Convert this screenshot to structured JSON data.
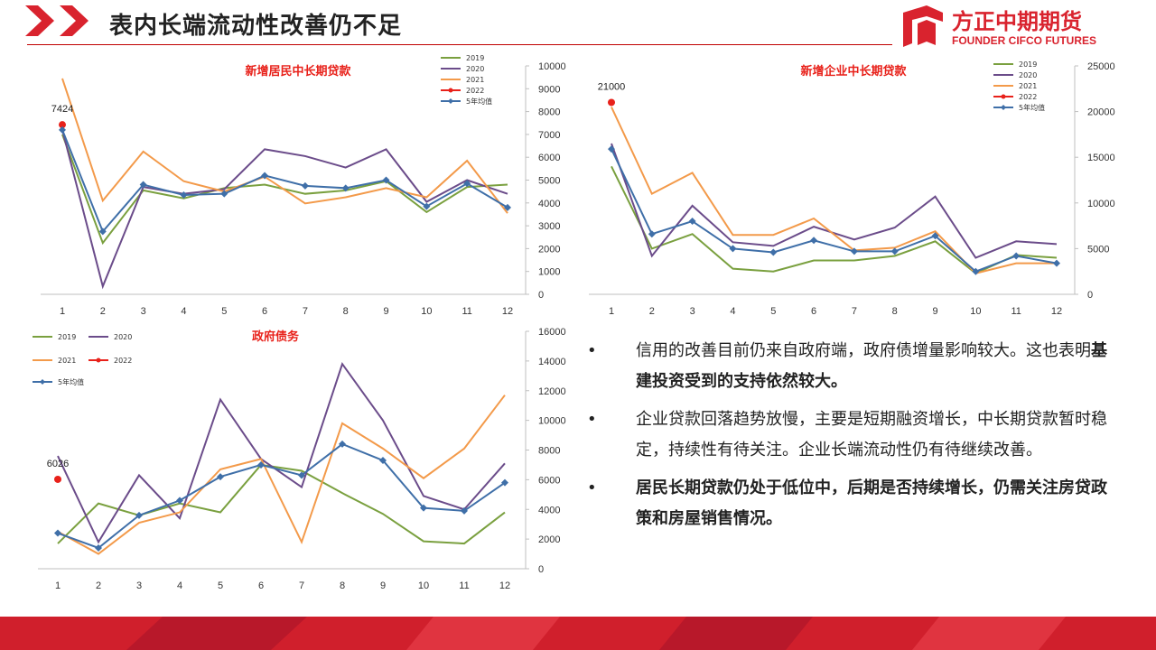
{
  "header": {
    "title": "表内长端流动性改善仍不足",
    "logo_cn": "方正中期期货",
    "logo_en": "FOUNDER CIFCO FUTURES"
  },
  "colors": {
    "brand_red": "#d9232e",
    "s2019": "#7aa03f",
    "s2020": "#6b4c8a",
    "s2021": "#f39a4a",
    "s2022": "#e8211a",
    "avg5": "#3f6fa8"
  },
  "chart_data": [
    {
      "id": "household",
      "type": "line",
      "title": "新增居民中长期贷款",
      "categories": [
        "1",
        "2",
        "3",
        "4",
        "5",
        "6",
        "7",
        "8",
        "9",
        "10",
        "11",
        "12"
      ],
      "ylim": [
        0,
        10000
      ],
      "yticks": [
        "0",
        "1000",
        "2000",
        "3000",
        "4000",
        "5000",
        "6000",
        "7000",
        "8000",
        "9000",
        "10000"
      ],
      "legend_position": "top-right",
      "series": [
        {
          "name": "2019",
          "values": [
            7000,
            2250,
            4550,
            4200,
            4650,
            4800,
            4400,
            4550,
            4950,
            3600,
            4700,
            4800
          ]
        },
        {
          "name": "2020",
          "values": [
            7200,
            350,
            4700,
            4400,
            4600,
            6350,
            6050,
            5550,
            6350,
            4050,
            5000,
            4400
          ]
        },
        {
          "name": "2021",
          "values": [
            9450,
            4100,
            6250,
            4950,
            4500,
            5150,
            3980,
            4250,
            4650,
            4250,
            5850,
            3550
          ]
        },
        {
          "name": "2022",
          "values": [
            7424,
            null,
            null,
            null,
            null,
            null,
            null,
            null,
            null,
            null,
            null,
            null
          ]
        },
        {
          "name": "5年均值",
          "values": [
            7200,
            2750,
            4800,
            4350,
            4400,
            5200,
            4750,
            4650,
            5000,
            3850,
            4850,
            3800
          ]
        }
      ],
      "annotation": "7424"
    },
    {
      "id": "corporate",
      "type": "line",
      "title": "新增企业中长期贷款",
      "categories": [
        "1",
        "2",
        "3",
        "4",
        "5",
        "6",
        "7",
        "8",
        "9",
        "10",
        "11",
        "12"
      ],
      "ylim": [
        0,
        25000
      ],
      "yticks": [
        "0",
        "5000",
        "10000",
        "15000",
        "20000",
        "25000"
      ],
      "legend_position": "top-left",
      "series": [
        {
          "name": "2019",
          "values": [
            14000,
            5000,
            6600,
            2800,
            2500,
            3700,
            3700,
            4200,
            5800,
            2300,
            4300,
            4000
          ]
        },
        {
          "name": "2020",
          "values": [
            16500,
            4200,
            9700,
            5700,
            5300,
            7400,
            6000,
            7300,
            10700,
            4000,
            5800,
            5500
          ]
        },
        {
          "name": "2021",
          "values": [
            20500,
            11000,
            13300,
            6500,
            6500,
            8300,
            4800,
            5100,
            6900,
            2300,
            3400,
            3400
          ]
        },
        {
          "name": "2022",
          "values": [
            21000,
            null,
            null,
            null,
            null,
            null,
            null,
            null,
            null,
            null,
            null,
            null
          ]
        },
        {
          "name": "5年均值",
          "values": [
            15900,
            6600,
            8000,
            5000,
            4600,
            5900,
            4700,
            4700,
            6400,
            2500,
            4200,
            3400
          ]
        }
      ],
      "annotation": "21000"
    },
    {
      "id": "government",
      "type": "line",
      "title": "政府债务",
      "categories": [
        "1",
        "2",
        "3",
        "4",
        "5",
        "6",
        "7",
        "8",
        "9",
        "10",
        "11",
        "12"
      ],
      "ylim": [
        0,
        16000
      ],
      "yticks": [
        "0",
        "2000",
        "4000",
        "6000",
        "8000",
        "10000",
        "12000",
        "14000",
        "16000"
      ],
      "legend_position": "top-left",
      "series": [
        {
          "name": "2019",
          "values": [
            1700,
            4400,
            3600,
            4400,
            3800,
            7000,
            6600,
            5100,
            3700,
            1850,
            1700,
            3800
          ]
        },
        {
          "name": "2020",
          "values": [
            7600,
            1800,
            6300,
            3400,
            11400,
            7400,
            5500,
            13800,
            10000,
            4900,
            4000,
            7100
          ]
        },
        {
          "name": "2021",
          "values": [
            2500,
            1000,
            3100,
            3800,
            6700,
            7400,
            1800,
            9800,
            8100,
            6100,
            8100,
            11700
          ]
        },
        {
          "name": "2022",
          "values": [
            6026,
            null,
            null,
            null,
            null,
            null,
            null,
            null,
            null,
            null,
            null,
            null
          ]
        },
        {
          "name": "5年均值",
          "values": [
            2400,
            1400,
            3600,
            4600,
            6200,
            7000,
            6300,
            8400,
            7300,
            4100,
            3900,
            5800
          ]
        }
      ],
      "annotation": "6026"
    }
  ],
  "bullets": [
    {
      "parts": [
        {
          "text": "信用的改善目前仍来自政府端，政府债增量影响较大。这也表明",
          "bold": false
        },
        {
          "text": "基建投资受到的支持依然较大。",
          "bold": true
        }
      ]
    },
    {
      "parts": [
        {
          "text": "企业贷款回落趋势放慢，主要是短期融资增长，中长期贷款暂时稳定，持续性有待关注。企业长端流动性仍有待继续改善。",
          "bold": false
        }
      ]
    },
    {
      "parts": [
        {
          "text": "居民长期贷款仍处于低位中，后期是否持续增长，仍需关注房贷政策和房屋销售情况。",
          "bold": true
        }
      ]
    }
  ]
}
